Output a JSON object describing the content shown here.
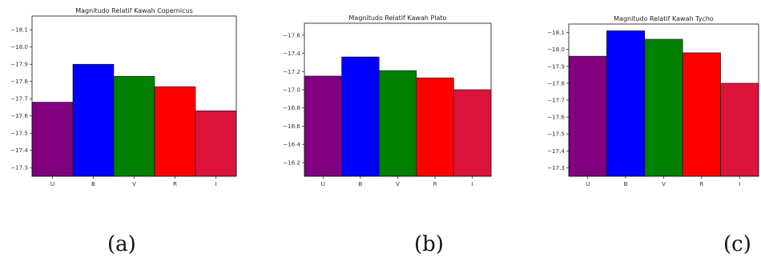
{
  "chart_data": [
    {
      "type": "bar",
      "title": "Magnitudo Relatif Kawah Copernicus",
      "categories": [
        "U",
        "B",
        "V",
        "R",
        "I"
      ],
      "values": [
        -17.68,
        -17.9,
        -17.83,
        -17.77,
        -17.63
      ],
      "colors": [
        "#800080",
        "#0000ff",
        "#008000",
        "#ff0000",
        "#dc143c"
      ],
      "yticks": [
        -18.1,
        -18.0,
        -17.9,
        -17.8,
        -17.7,
        -17.6,
        -17.5,
        -17.4,
        -17.3
      ],
      "ylim": [
        -17.25,
        -18.18
      ],
      "caption": "(a)"
    },
    {
      "type": "bar",
      "title": "Magnitudo Relatif Kawah Plato",
      "categories": [
        "U",
        "B",
        "V",
        "R",
        "I"
      ],
      "values": [
        -17.15,
        -17.36,
        -17.21,
        -17.13,
        -17.0
      ],
      "colors": [
        "#800080",
        "#0000ff",
        "#008000",
        "#ff0000",
        "#dc143c"
      ],
      "yticks": [
        -17.6,
        -17.4,
        -17.2,
        -17.0,
        -16.8,
        -16.6,
        -16.4,
        -16.2
      ],
      "ylim": [
        -16.05,
        -17.73
      ],
      "caption": "(b)"
    },
    {
      "type": "bar",
      "title": "Magnitudo Relatif Kawah Tycho",
      "categories": [
        "U",
        "B",
        "V",
        "R",
        "I"
      ],
      "values": [
        -17.96,
        -18.11,
        -18.06,
        -17.98,
        -17.8
      ],
      "colors": [
        "#800080",
        "#0000ff",
        "#008000",
        "#ff0000",
        "#dc143c"
      ],
      "yticks": [
        -18.1,
        -18.0,
        -17.9,
        -17.8,
        -17.7,
        -17.6,
        -17.5,
        -17.4,
        -17.3
      ],
      "ylim": [
        -17.25,
        -18.15
      ],
      "caption": "(c)"
    }
  ]
}
